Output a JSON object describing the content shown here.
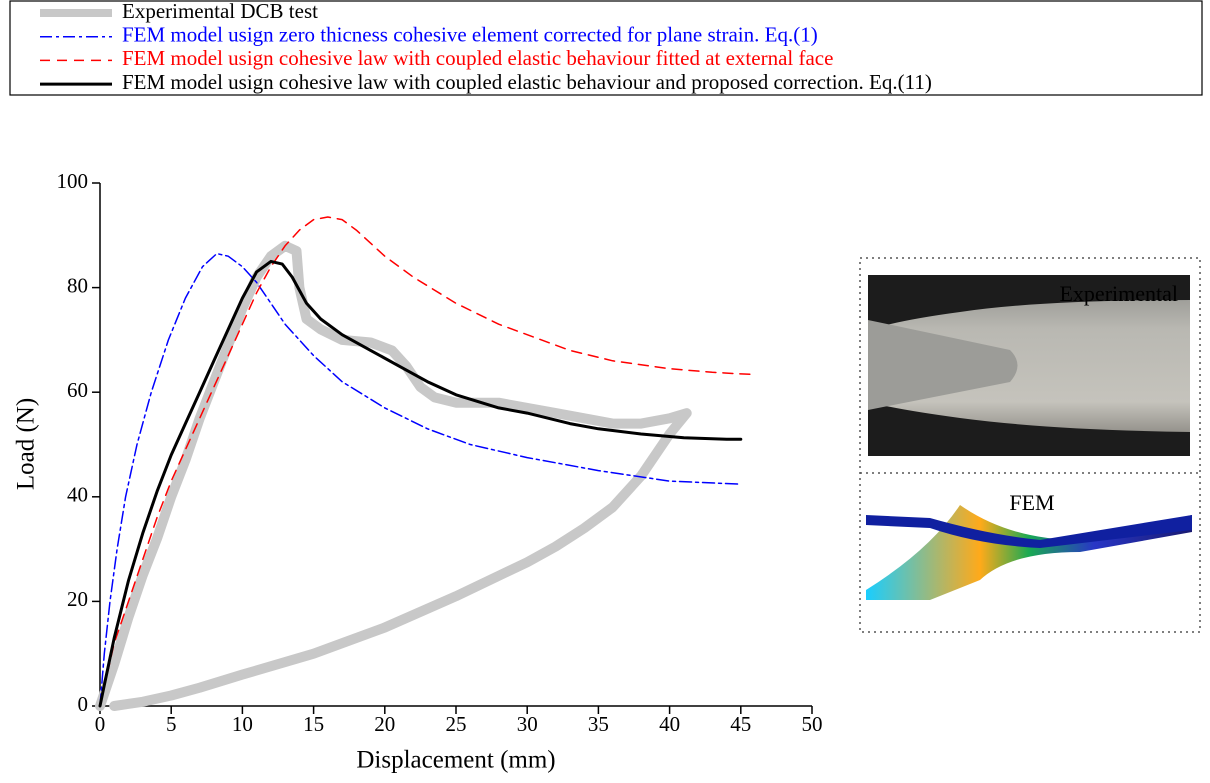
{
  "chart_data": {
    "type": "line",
    "x_label": "Displacement (mm)",
    "y_label": "Load (N)",
    "xlim": [
      0,
      50
    ],
    "xticks": [
      0,
      5,
      10,
      15,
      20,
      25,
      30,
      35,
      40,
      45,
      50
    ],
    "ylim": [
      0,
      100
    ],
    "yticks": [
      0,
      20,
      40,
      60,
      80,
      100
    ],
    "legend": "top",
    "series": [
      {
        "name": "Experimental DCB test",
        "color": "#c8c8c8",
        "line_style": "solid",
        "line_width": 10,
        "x": [
          0,
          1,
          2,
          3,
          4,
          5,
          6,
          7,
          8,
          9,
          10,
          11,
          12,
          13,
          13.8,
          14,
          14.5,
          15.5,
          17,
          19,
          20.5,
          21.5,
          22.5,
          23.5,
          25,
          28,
          30,
          32,
          34,
          36,
          38,
          40,
          41.2,
          40,
          38,
          36,
          34,
          32,
          30,
          25,
          20,
          15,
          10,
          7,
          5,
          3,
          1
        ],
        "values": [
          0,
          8,
          17,
          25,
          32,
          40,
          47,
          55,
          62,
          69,
          76,
          82,
          86,
          88,
          87,
          80,
          74,
          72,
          70,
          69.5,
          68,
          65,
          61,
          59,
          58,
          58,
          57,
          56,
          55,
          54,
          54,
          55,
          56,
          52,
          44,
          38,
          34,
          30.5,
          27.5,
          21,
          15,
          10,
          6,
          3.5,
          2,
          0.8,
          0
        ]
      },
      {
        "name": "FEM model usign zero thicness cohesive element corrected for plane strain. Eq.(1)",
        "color": "#0000ff",
        "line_style": "dashdot",
        "line_width": 1.5,
        "x": [
          0,
          0.3,
          0.7,
          1.2,
          1.8,
          2.6,
          3.6,
          4.8,
          6,
          7.2,
          8.2,
          9,
          10,
          11,
          12,
          13,
          15,
          17,
          20,
          23,
          26,
          30,
          35,
          40,
          45
        ],
        "values": [
          0,
          10,
          20,
          30,
          40,
          50,
          60,
          70,
          78,
          84,
          86.5,
          86,
          84,
          81,
          77,
          73,
          67,
          62,
          57,
          53,
          50,
          47.5,
          45,
          43,
          42.4
        ]
      },
      {
        "name": "FEM model usign cohesive law with coupled elastic behaviour fitted at external face",
        "color": "#ff0000",
        "line_style": "dashed",
        "line_width": 1.5,
        "x": [
          0,
          0.5,
          1,
          2,
          3,
          4,
          5,
          6,
          7,
          8,
          9,
          10,
          11,
          12,
          13,
          14,
          15,
          16,
          17,
          18,
          20,
          22,
          25,
          28,
          30,
          33,
          36,
          40,
          43,
          45,
          46
        ],
        "values": [
          0,
          6,
          12,
          20,
          28,
          36,
          43,
          49,
          55,
          61,
          67,
          73,
          79,
          84,
          88,
          91,
          93,
          93.5,
          93,
          91,
          86,
          82,
          77,
          73,
          71,
          68,
          66,
          64.5,
          63.8,
          63.5,
          63.4
        ]
      },
      {
        "name": "FEM model usign cohesive law with coupled elastic behaviour and proposed correction. Eq.(11)",
        "color": "#000000",
        "line_style": "solid",
        "line_width": 3,
        "x": [
          0,
          0.3,
          1,
          2,
          3,
          4,
          5,
          6,
          7,
          8,
          9,
          10,
          11,
          12,
          12.8,
          13.5,
          14.5,
          15.5,
          17,
          19,
          21,
          23,
          25,
          28,
          30,
          33,
          35,
          38,
          41,
          44,
          45
        ],
        "values": [
          0,
          4,
          13,
          24,
          33,
          41,
          48,
          54,
          60,
          66,
          72,
          78,
          83,
          85,
          84.5,
          82,
          77,
          74,
          71,
          68,
          65,
          62,
          59.5,
          57,
          56,
          54,
          53,
          52,
          51.3,
          51,
          51
        ]
      }
    ],
    "inset_labels": [
      "Experimental",
      "FEM"
    ]
  }
}
